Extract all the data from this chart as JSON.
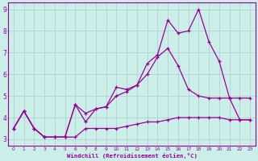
{
  "xlabel": "Windchill (Refroidissement éolien,°C)",
  "background_color": "#cceee8",
  "grid_color": "#aacccc",
  "line_color": "#990099",
  "x_ticks": [
    0,
    1,
    2,
    3,
    4,
    5,
    6,
    7,
    8,
    9,
    10,
    11,
    12,
    13,
    14,
    15,
    16,
    17,
    18,
    19,
    20,
    21,
    22,
    23
  ],
  "ylim": [
    2.7,
    9.3
  ],
  "xlim": [
    -0.5,
    23.5
  ],
  "series1_x": [
    0,
    1,
    2,
    3,
    4,
    5,
    6,
    7,
    8,
    9,
    10,
    11,
    12,
    13,
    14,
    15,
    16,
    17,
    18,
    19,
    20,
    21,
    22,
    23
  ],
  "series1_y": [
    3.5,
    4.3,
    3.5,
    3.1,
    3.1,
    3.1,
    3.1,
    3.5,
    3.5,
    3.5,
    3.5,
    3.6,
    3.7,
    3.8,
    3.8,
    3.9,
    4.0,
    4.0,
    4.0,
    4.0,
    4.0,
    3.9,
    3.9,
    3.9
  ],
  "series2_x": [
    0,
    1,
    2,
    3,
    4,
    5,
    6,
    7,
    8,
    9,
    10,
    11,
    12,
    13,
    14,
    15,
    16,
    17,
    18,
    19,
    20,
    21,
    22,
    23
  ],
  "series2_y": [
    3.5,
    4.3,
    3.5,
    3.1,
    3.1,
    3.1,
    4.6,
    4.2,
    4.4,
    4.5,
    5.4,
    5.3,
    5.5,
    6.5,
    6.9,
    8.5,
    7.9,
    8.0,
    9.0,
    7.5,
    6.6,
    4.9,
    3.9,
    3.9
  ],
  "series3_x": [
    0,
    1,
    2,
    3,
    4,
    5,
    6,
    7,
    8,
    9,
    10,
    11,
    12,
    13,
    14,
    15,
    16,
    17,
    18,
    19,
    20,
    21,
    22,
    23
  ],
  "series3_y": [
    3.5,
    4.3,
    3.5,
    3.1,
    3.1,
    3.1,
    4.6,
    3.8,
    4.4,
    4.5,
    5.0,
    5.2,
    5.5,
    6.0,
    6.8,
    7.2,
    6.4,
    5.3,
    5.0,
    4.9,
    4.9,
    4.9,
    4.9,
    4.9
  ]
}
